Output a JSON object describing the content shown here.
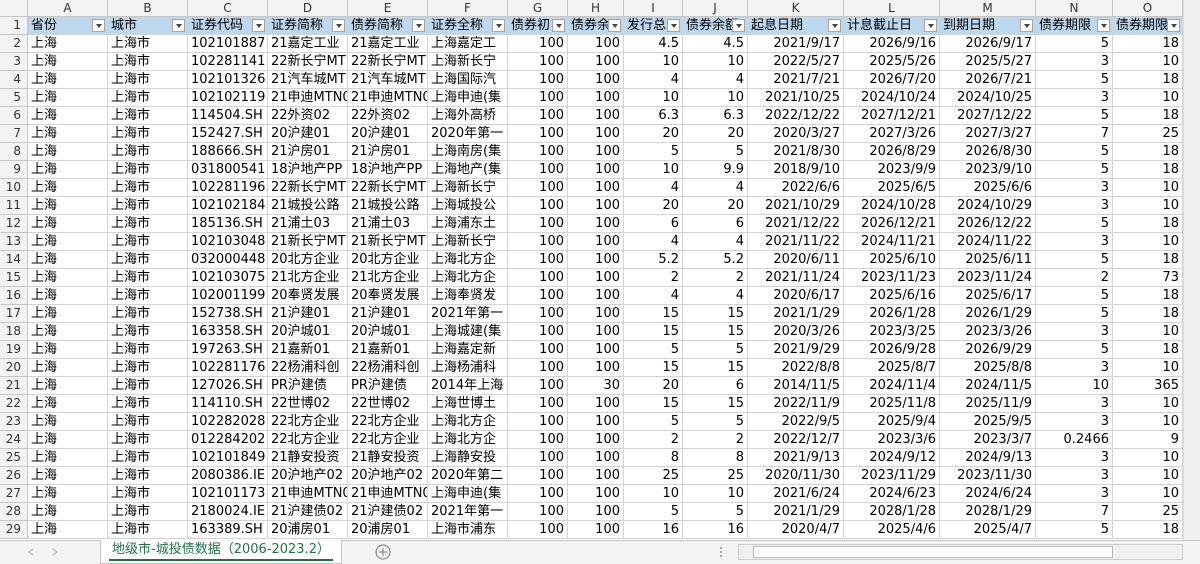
{
  "table": {
    "columns": [
      "A",
      "B",
      "C",
      "D",
      "E",
      "F",
      "G",
      "H",
      "I",
      "J",
      "K",
      "L",
      "M",
      "N",
      "O"
    ],
    "row_numbers": [
      1,
      2,
      3,
      4,
      5,
      6,
      7,
      8,
      9,
      10,
      11,
      12,
      13,
      14,
      15,
      16,
      17,
      18,
      19,
      20,
      21,
      22,
      23,
      24,
      25,
      26,
      27,
      28,
      29
    ],
    "header": [
      "省份",
      "城市",
      "证券代码",
      "证券简称",
      "债券简称",
      "证券全称",
      "债券初",
      "债券余",
      "发行总",
      "债券余额",
      "起息日期",
      "计息截止日",
      "到期日期",
      "债券期限",
      "债券期限"
    ],
    "rows": [
      [
        "上海",
        "上海市",
        "102101887.",
        "21嘉定工业",
        "21嘉定工业",
        "上海嘉定工",
        "100",
        "100",
        "4.5",
        "4.5",
        "2021/9/17",
        "2026/9/16",
        "2026/9/17",
        "5",
        "18"
      ],
      [
        "上海",
        "上海市",
        "102281141.",
        "22新长宁MT",
        "22新长宁MT",
        "上海新长宁",
        "100",
        "100",
        "10",
        "10",
        "2022/5/27",
        "2025/5/26",
        "2025/5/27",
        "3",
        "10"
      ],
      [
        "上海",
        "上海市",
        "102101326.",
        "21汽车城MT",
        "21汽车城MT",
        "上海国际汽",
        "100",
        "100",
        "4",
        "4",
        "2021/7/21",
        "2026/7/20",
        "2026/7/21",
        "5",
        "18"
      ],
      [
        "上海",
        "上海市",
        "102102119.",
        "21申迪MTN0",
        "21申迪MTN0",
        "上海申迪(集",
        "100",
        "100",
        "10",
        "10",
        "2021/10/25",
        "2024/10/24",
        "2024/10/25",
        "3",
        "10"
      ],
      [
        "上海",
        "上海市",
        "114504.SH",
        "22外资02",
        "22外资02",
        "上海外高桥",
        "100",
        "100",
        "6.3",
        "6.3",
        "2022/12/22",
        "2027/12/21",
        "2027/12/22",
        "5",
        "18"
      ],
      [
        "上海",
        "上海市",
        "152427.SH",
        "20沪建01",
        "20沪建01",
        "2020年第一",
        "100",
        "100",
        "20",
        "20",
        "2020/3/27",
        "2027/3/26",
        "2027/3/27",
        "7",
        "25"
      ],
      [
        "上海",
        "上海市",
        "188666.SH",
        "21沪房01",
        "21沪房01",
        "上海南房(集",
        "100",
        "100",
        "5",
        "5",
        "2021/8/30",
        "2026/8/29",
        "2026/8/30",
        "5",
        "18"
      ],
      [
        "上海",
        "上海市",
        "031800541.",
        "18沪地产PP",
        "18沪地产PP",
        "上海地产(集",
        "100",
        "100",
        "10",
        "9.9",
        "2018/9/10",
        "2023/9/9",
        "2023/9/10",
        "5",
        "18"
      ],
      [
        "上海",
        "上海市",
        "102281196.",
        "22新长宁MT",
        "22新长宁MT",
        "上海新长宁",
        "100",
        "100",
        "4",
        "4",
        "2022/6/6",
        "2025/6/5",
        "2025/6/6",
        "3",
        "10"
      ],
      [
        "上海",
        "上海市",
        "102102184.",
        "21城投公路",
        "21城投公路",
        "上海城投公",
        "100",
        "100",
        "20",
        "20",
        "2021/10/29",
        "2024/10/28",
        "2024/10/29",
        "3",
        "10"
      ],
      [
        "上海",
        "上海市",
        "185136.SH",
        "21浦土03",
        "21浦土03",
        "上海浦东土",
        "100",
        "100",
        "6",
        "6",
        "2021/12/22",
        "2026/12/21",
        "2026/12/22",
        "5",
        "18"
      ],
      [
        "上海",
        "上海市",
        "102103048.",
        "21新长宁MT",
        "21新长宁MT",
        "上海新长宁",
        "100",
        "100",
        "4",
        "4",
        "2021/11/22",
        "2024/11/21",
        "2024/11/22",
        "3",
        "10"
      ],
      [
        "上海",
        "上海市",
        "032000448.",
        "20北方企业",
        "20北方企业",
        "上海北方企",
        "100",
        "100",
        "5.2",
        "5.2",
        "2020/6/11",
        "2025/6/10",
        "2025/6/11",
        "5",
        "18"
      ],
      [
        "上海",
        "上海市",
        "102103075.",
        "21北方企业",
        "21北方企业",
        "上海北方企",
        "100",
        "100",
        "2",
        "2",
        "2021/11/24",
        "2023/11/23",
        "2023/11/24",
        "2",
        "73"
      ],
      [
        "上海",
        "上海市",
        "102001199.",
        "20奉贤发展",
        "20奉贤发展",
        "上海奉贤发",
        "100",
        "100",
        "4",
        "4",
        "2020/6/17",
        "2025/6/16",
        "2025/6/17",
        "5",
        "18"
      ],
      [
        "上海",
        "上海市",
        "152738.SH",
        "21沪建01",
        "21沪建01",
        "2021年第一",
        "100",
        "100",
        "15",
        "15",
        "2021/1/29",
        "2026/1/28",
        "2026/1/29",
        "5",
        "18"
      ],
      [
        "上海",
        "上海市",
        "163358.SH",
        "20沪城01",
        "20沪城01",
        "上海城建(集",
        "100",
        "100",
        "15",
        "15",
        "2020/3/26",
        "2023/3/25",
        "2023/3/26",
        "3",
        "10"
      ],
      [
        "上海",
        "上海市",
        "197263.SH",
        "21嘉新01",
        "21嘉新01",
        "上海嘉定新",
        "100",
        "100",
        "5",
        "5",
        "2021/9/29",
        "2026/9/28",
        "2026/9/29",
        "5",
        "18"
      ],
      [
        "上海",
        "上海市",
        "102281176.",
        "22杨浦科创",
        "22杨浦科创",
        "上海杨浦科",
        "100",
        "100",
        "15",
        "15",
        "2022/8/8",
        "2025/8/7",
        "2025/8/8",
        "3",
        "10"
      ],
      [
        "上海",
        "上海市",
        "127026.SH",
        "PR沪建债",
        "PR沪建债",
        "2014年上海",
        "100",
        "30",
        "20",
        "6",
        "2014/11/5",
        "2024/11/4",
        "2024/11/5",
        "10",
        "365"
      ],
      [
        "上海",
        "上海市",
        "114110.SH",
        "22世博02",
        "22世博02",
        "上海世博土",
        "100",
        "100",
        "15",
        "15",
        "2022/11/9",
        "2025/11/8",
        "2025/11/9",
        "3",
        "10"
      ],
      [
        "上海",
        "上海市",
        "102282028.",
        "22北方企业",
        "22北方企业",
        "上海北方企",
        "100",
        "100",
        "5",
        "5",
        "2022/9/5",
        "2025/9/4",
        "2025/9/5",
        "3",
        "10"
      ],
      [
        "上海",
        "上海市",
        "012284202.",
        "22北方企业",
        "22北方企业",
        "上海北方企",
        "100",
        "100",
        "2",
        "2",
        "2022/12/7",
        "2023/3/6",
        "2023/3/7",
        "0.2466",
        "9"
      ],
      [
        "上海",
        "上海市",
        "102101849.",
        "21静安投资",
        "21静安投资",
        "上海静安投",
        "100",
        "100",
        "8",
        "8",
        "2021/9/13",
        "2024/9/12",
        "2024/9/13",
        "3",
        "10"
      ],
      [
        "上海",
        "上海市",
        "2080386.IE",
        "20沪地产02",
        "20沪地产02",
        "2020年第二",
        "100",
        "100",
        "25",
        "25",
        "2020/11/30",
        "2023/11/29",
        "2023/11/30",
        "3",
        "10"
      ],
      [
        "上海",
        "上海市",
        "102101173.",
        "21申迪MTN0",
        "21申迪MTN0",
        "上海申迪(集",
        "100",
        "100",
        "10",
        "10",
        "2021/6/24",
        "2024/6/23",
        "2024/6/24",
        "3",
        "10"
      ],
      [
        "上海",
        "上海市",
        "2180024.IE",
        "21沪建债02",
        "21沪建债02",
        "2021年第一",
        "100",
        "100",
        "5",
        "5",
        "2021/1/29",
        "2028/1/28",
        "2028/1/29",
        "7",
        "25"
      ],
      [
        "上海",
        "上海市",
        "163389.SH",
        "20浦房01",
        "20浦房01",
        "上海市浦东",
        "100",
        "100",
        "16",
        "16",
        "2020/4/7",
        "2025/4/6",
        "2025/4/7",
        "5",
        "18"
      ]
    ]
  },
  "sheet_tab": "地级市-城投债数据（2006-2023.2）"
}
